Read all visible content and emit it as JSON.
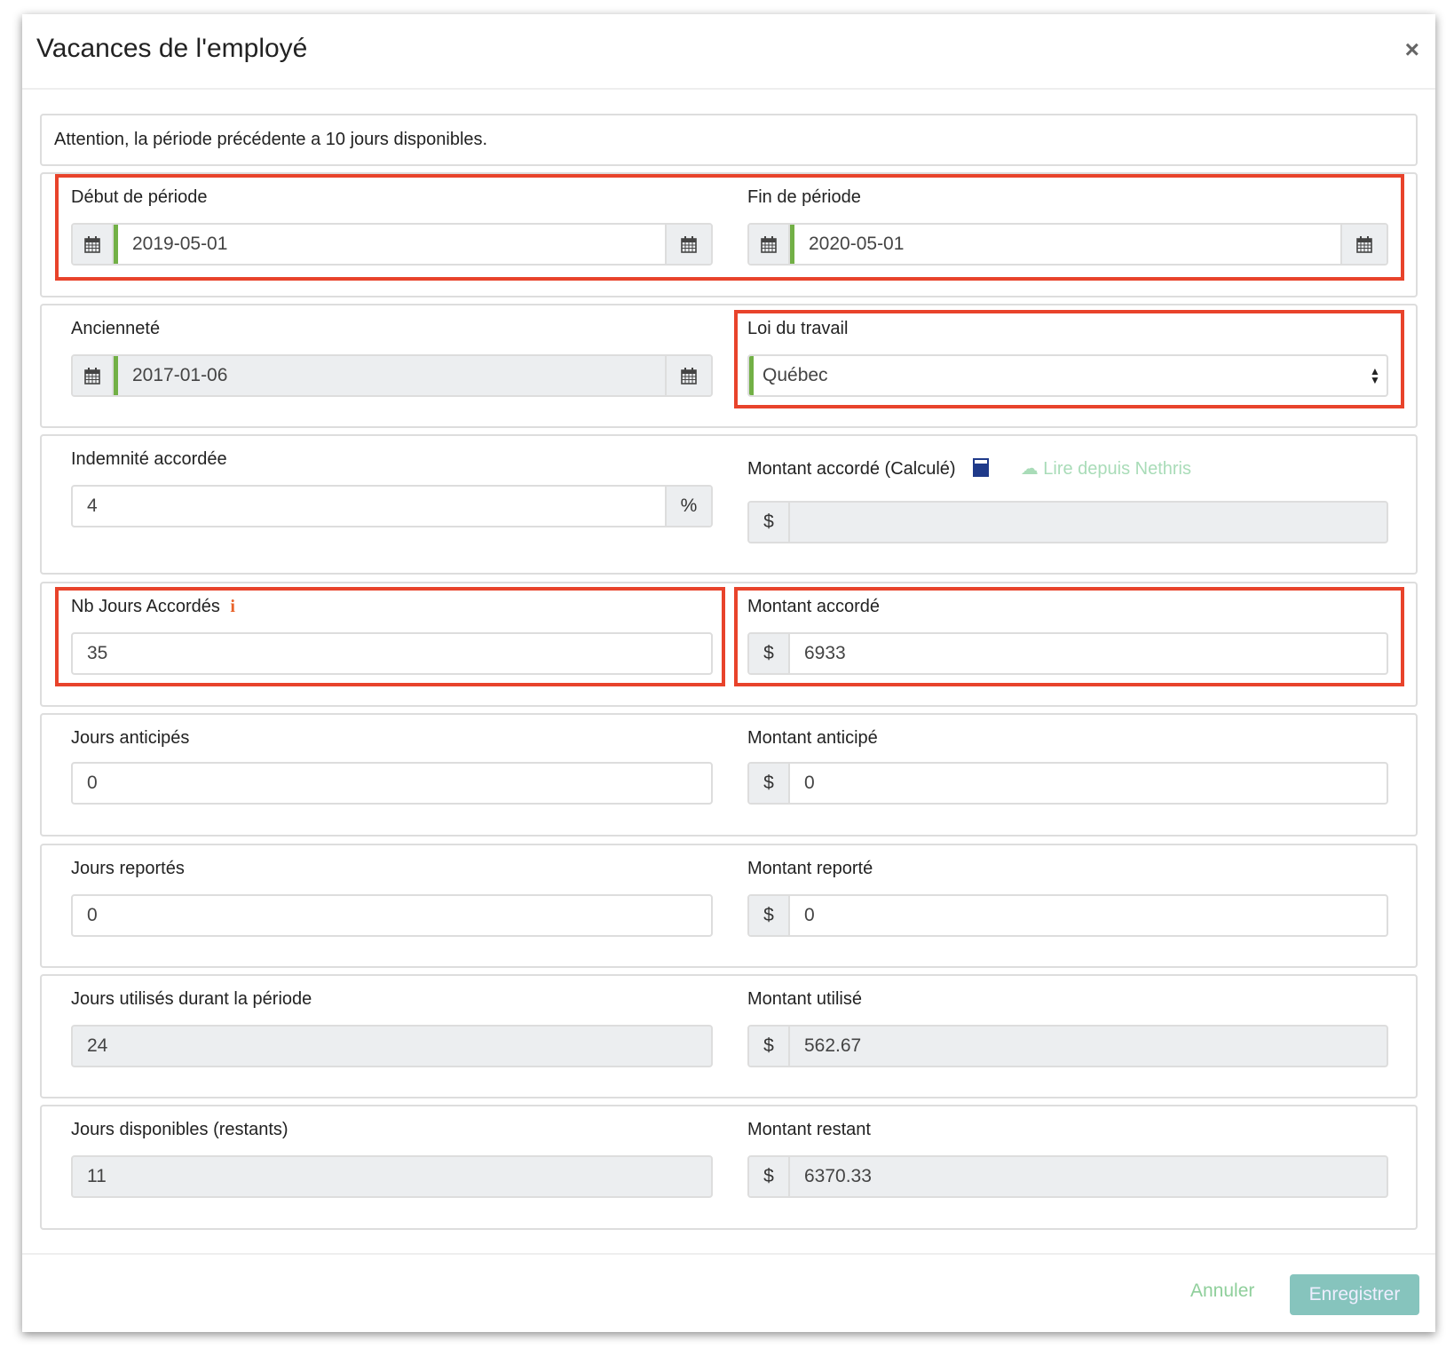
{
  "title": "Vacances de l'employé",
  "close": "×",
  "alert": "Attention, la période précédente a 10 jours disponibles.",
  "fields": {
    "debut": {
      "label": "Début de période",
      "value": "2019-05-01"
    },
    "fin": {
      "label": "Fin de période",
      "value": "2020-05-01"
    },
    "anciennete": {
      "label": "Ancienneté",
      "value": "2017-01-06"
    },
    "loi": {
      "label": "Loi du travail",
      "value": "Québec"
    },
    "indemnite": {
      "label": "Indemnité accordée",
      "value": "4",
      "suffix": "%"
    },
    "montant_calc": {
      "label": "Montant accordé (Calculé)",
      "link": "Lire depuis Nethris",
      "prefix": "$",
      "value": ""
    },
    "nb_jours": {
      "label": "Nb Jours Accordés",
      "info": "i",
      "value": "35"
    },
    "montant": {
      "label": "Montant accordé",
      "prefix": "$",
      "value": "6933"
    },
    "jours_anticipes": {
      "label": "Jours anticipés",
      "value": "0"
    },
    "montant_anticipe": {
      "label": "Montant anticipé",
      "prefix": "$",
      "value": "0"
    },
    "jours_reportes": {
      "label": "Jours reportés",
      "value": "0"
    },
    "montant_reporte": {
      "label": "Montant reporté",
      "prefix": "$",
      "value": "0"
    },
    "jours_utilises": {
      "label": "Jours utilisés durant la période",
      "value": "24"
    },
    "montant_utilise": {
      "label": "Montant utilisé",
      "prefix": "$",
      "value": "562.67"
    },
    "jours_dispo": {
      "label": "Jours disponibles (restants)",
      "value": "11"
    },
    "montant_restant": {
      "label": "Montant restant",
      "prefix": "$",
      "value": "6370.33"
    }
  },
  "footer": {
    "cancel": "Annuler",
    "save": "Enregistrer"
  },
  "colors": {
    "highlight": "#e8432b",
    "accent": "#86c4bd",
    "valid": "#72b046",
    "link": "#8fcf9b"
  }
}
